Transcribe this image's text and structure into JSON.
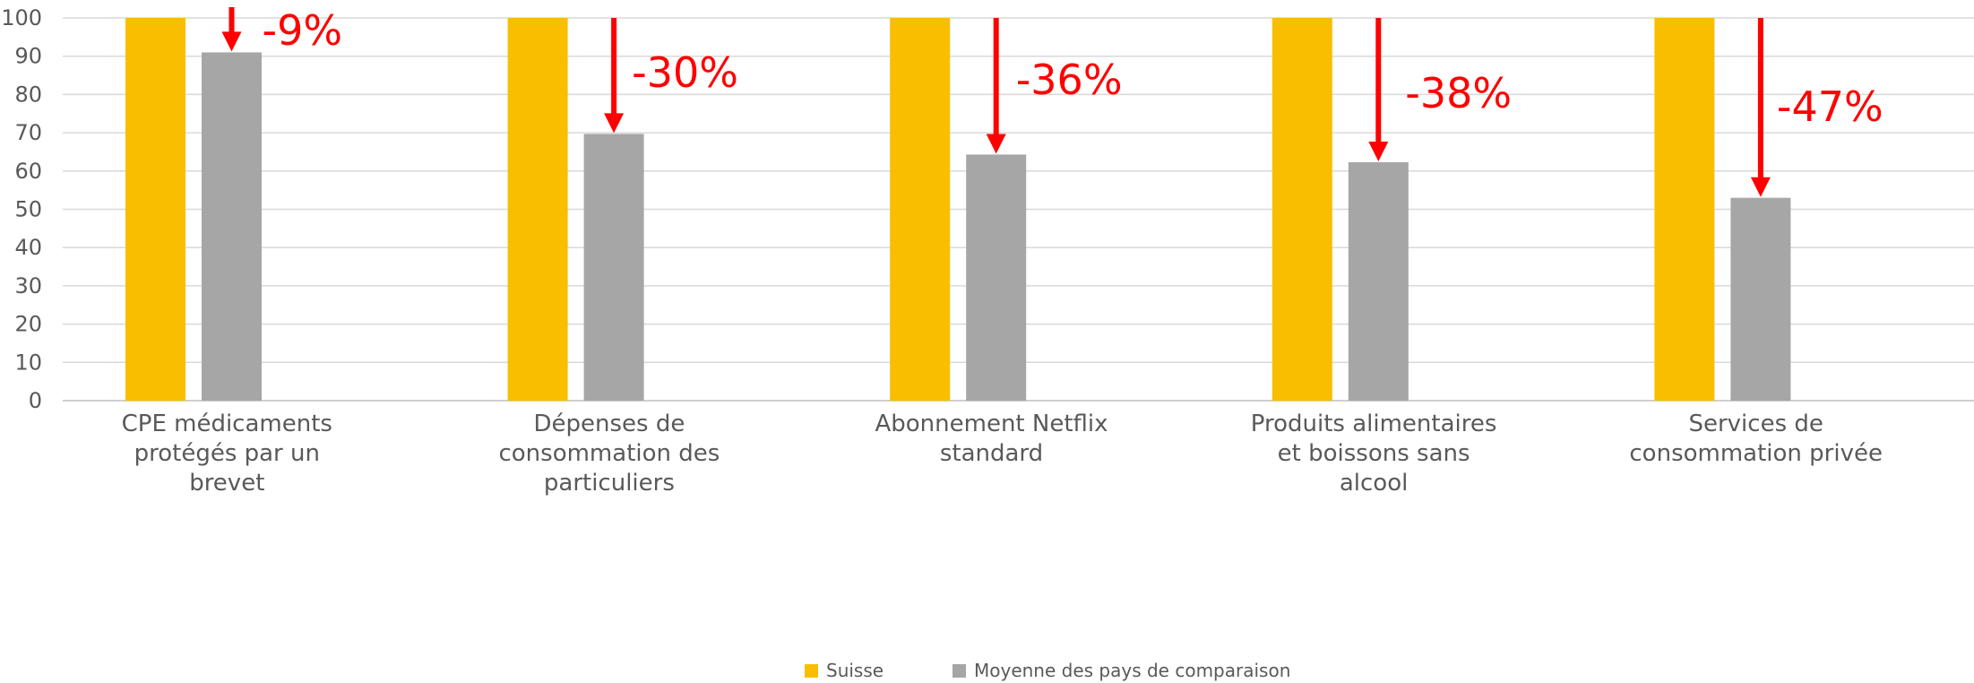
{
  "chart_data": {
    "type": "bar",
    "categories": [
      [
        "CPE médicaments",
        "protégés par un",
        "brevet"
      ],
      [
        "Dépenses de",
        "consommation des",
        "particuliers"
      ],
      [
        "Abonnement Netflix",
        "standard"
      ],
      [
        "Produits alimentaires",
        "et boissons sans",
        "alcool"
      ],
      [
        "Services de",
        "consommation privée"
      ]
    ],
    "series": [
      {
        "name": "Suisse",
        "color": "#F9BE00",
        "values": [
          100,
          100,
          100,
          100,
          100
        ]
      },
      {
        "name": "Moyenne des pays de comparaison",
        "color": "#A6A6A6",
        "values": [
          91,
          69.7,
          64.3,
          62.3,
          53
        ]
      }
    ],
    "annotations": [
      "-9%",
      "-30%",
      "-36%",
      "-38%",
      "-47%"
    ],
    "annotation_color": "#FF0000",
    "ylim": [
      0,
      100
    ],
    "yticks": [
      "0",
      "10",
      "20",
      "30",
      "40",
      "50",
      "60",
      "70",
      "80",
      "90",
      "100"
    ],
    "grid": true,
    "legend_position": "bottom"
  }
}
